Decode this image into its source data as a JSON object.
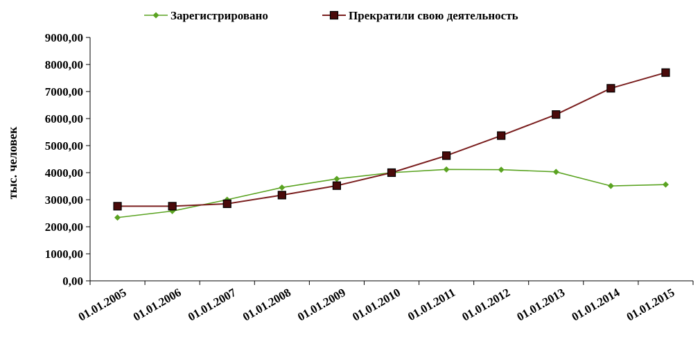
{
  "chart_data": {
    "type": "line",
    "title": "",
    "xlabel": "",
    "ylabel": "тыс. человек",
    "ylim": [
      0,
      9000
    ],
    "y_ticks": [
      "0,00",
      "1000,00",
      "2000,00",
      "3000,00",
      "4000,00",
      "5000,00",
      "6000,00",
      "7000,00",
      "8000,00",
      "9000,00"
    ],
    "categories": [
      "01.01.2005",
      "01.01.2006",
      "01.01.2007",
      "01.01.2008",
      "01.01.2009",
      "01.01.2010",
      "01.01.2011",
      "01.01.2012",
      "01.01.2013",
      "01.01.2014",
      "01.01.2015"
    ],
    "grid": false,
    "legend_position": "top",
    "series": [
      {
        "name": "Зарегистрировано",
        "color": "#5aa321",
        "marker": "diamond",
        "values": [
          2340,
          2580,
          3000,
          3450,
          3770,
          4000,
          4120,
          4110,
          4030,
          3510,
          3560
        ]
      },
      {
        "name": "Прекратили свою деятельность",
        "color": "#7a1e1e",
        "marker": "square",
        "values": [
          2760,
          2760,
          2850,
          3170,
          3520,
          4000,
          4630,
          5370,
          6150,
          7120,
          7700
        ]
      }
    ]
  }
}
